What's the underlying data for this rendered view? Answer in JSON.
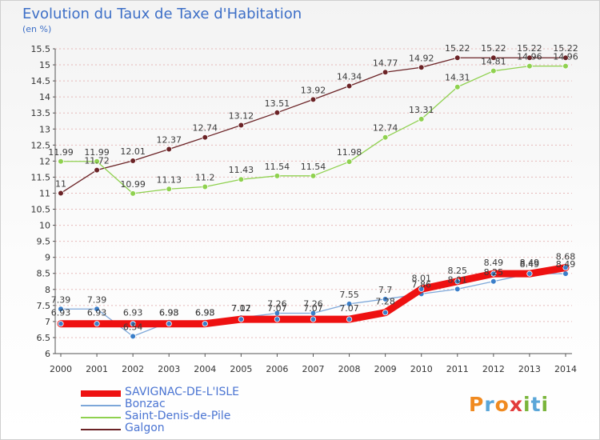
{
  "title": "Evolution du Taux de Taxe d'Habitation",
  "unit_label": "(en %)",
  "logo": {
    "text": "Proxiti",
    "letter_colors": [
      "#f08a20",
      "#5aa6d8",
      "#f08a20",
      "#e23b3b",
      "#7ab53b",
      "#5aa6d8",
      "#7ab53b"
    ]
  },
  "colors": {
    "grid": "#e5b8b8",
    "axis": "#555555",
    "tick_text": "#333333",
    "title": "#3d6fc7"
  },
  "chart_data": {
    "type": "line",
    "x": [
      "2000",
      "2001",
      "2002",
      "2003",
      "2004",
      "2005",
      "2006",
      "2007",
      "2008",
      "2009",
      "2010",
      "2011",
      "2012",
      "2013",
      "2014"
    ],
    "ylim": [
      6,
      15.5
    ],
    "yticks": [
      "6",
      "6.5",
      "7",
      "7.5",
      "8",
      "8.5",
      "9",
      "9.5",
      "10",
      "10.5",
      "11",
      "11.5",
      "12",
      "12.5",
      "13",
      "13.5",
      "14",
      "14.5",
      "15",
      "15.5"
    ],
    "grid": "horizontal dashed",
    "legend_position": "bottom-left",
    "series": [
      {
        "name": "Galgon",
        "color": "#6b2326",
        "marker": "#6b2326",
        "width": 1.3,
        "values": [
          11,
          11.72,
          12.01,
          12.37,
          12.74,
          13.12,
          13.51,
          13.92,
          14.34,
          14.77,
          14.92,
          15.22,
          15.22,
          15.22,
          15.22
        ],
        "labels": [
          "11",
          "11.72",
          "12.01",
          "12.37",
          "12.74",
          "13.12",
          "13.51",
          "13.92",
          "14.34",
          "14.77",
          "14.92",
          "15.22",
          "15.22",
          "15.22",
          "15.22"
        ]
      },
      {
        "name": "Saint-Denis-de-Pile",
        "color": "#8fd14f",
        "marker": "#8fd14f",
        "width": 1.3,
        "values": [
          11.99,
          11.99,
          10.99,
          11.13,
          11.2,
          11.43,
          11.54,
          11.54,
          11.98,
          12.74,
          13.31,
          14.31,
          14.81,
          14.96,
          14.96
        ],
        "labels": [
          "11.99",
          "11.99",
          "10.99",
          "11.13",
          "11.2",
          "11.43",
          "11.54",
          "11.54",
          "11.98",
          "12.74",
          "13.31",
          "14.31",
          "14.81",
          "14.96",
          "14.96"
        ]
      },
      {
        "name": "Bonzac",
        "color": "#7da7d9",
        "marker": "#3a7ec9",
        "width": 1.3,
        "values": [
          7.39,
          7.39,
          6.54,
          6.98,
          6.98,
          7.12,
          7.26,
          7.26,
          7.55,
          7.7,
          7.86,
          8.01,
          8.25,
          8.49,
          8.49
        ],
        "labels": [
          "7.39",
          "7.39",
          "6.54",
          "6.98",
          "6.98",
          "7.12",
          "7.26",
          "7.26",
          "7.55",
          "7.7",
          "7.86",
          "8.01",
          "8.25",
          "8.49",
          "8.49"
        ]
      },
      {
        "name": "SAVIGNAC-DE-L'ISLE",
        "color": "#ee1111",
        "marker": "#3a7ec9",
        "width": 9,
        "values": [
          6.93,
          6.93,
          6.93,
          6.93,
          6.93,
          7.07,
          7.07,
          7.07,
          7.07,
          7.28,
          8.01,
          8.25,
          8.49,
          8.49,
          8.68
        ],
        "labels": [
          "6.93",
          "6.93",
          "6.93",
          "6.93",
          "6.93",
          "7.07",
          "7.07",
          "7.07",
          "7.07",
          "7.28",
          "8.01",
          "8.25",
          "8.49",
          "8.49",
          "8.68"
        ]
      }
    ],
    "legend": [
      {
        "name": "SAVIGNAC-DE-L'ISLE",
        "color": "#ee1111",
        "thickness": 8
      },
      {
        "name": "Bonzac",
        "color": "#7da7d9",
        "thickness": 2
      },
      {
        "name": "Saint-Denis-de-Pile",
        "color": "#8fd14f",
        "thickness": 2
      },
      {
        "name": "Galgon",
        "color": "#6b2326",
        "thickness": 2
      }
    ]
  }
}
